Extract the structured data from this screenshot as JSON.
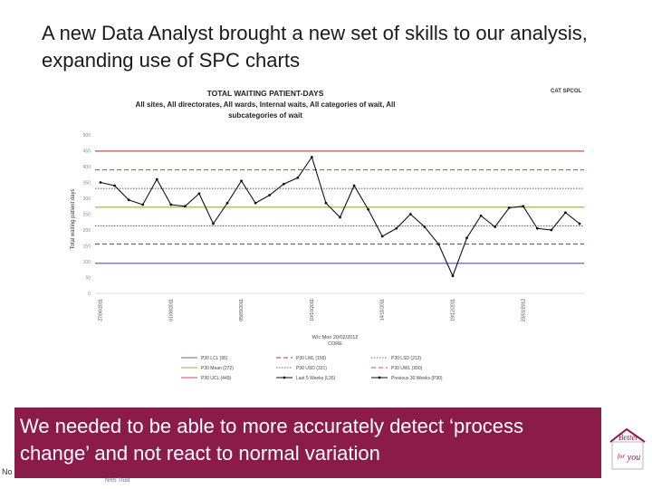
{
  "slide": {
    "title": "A new Data Analyst brought a new set of skills to our analysis, expanding use of SPC charts",
    "callout": "We needed to be able to more accurately detect ‘process change’ and not react to normal variation",
    "left_fragment": "No",
    "org_line": "NHS Trust",
    "logo_text": [
      "Better",
      "for",
      "you"
    ]
  },
  "chart_data": {
    "type": "line",
    "title": [
      "TOTAL WAITING PATIENT-DAYS",
      "All sites, All directorates, All wards, Internal waits, All categories of wait, All",
      "subcategories of wait"
    ],
    "corner_label": "CAT  SPCOL",
    "ylabel": "Total waiting patient days",
    "xlabel": [
      "W/c Mon 20/02/2012",
      "CORE"
    ],
    "ylim": [
      0,
      500
    ],
    "yticks": [
      0,
      50,
      100,
      150,
      200,
      250,
      300,
      350,
      400,
      450,
      500
    ],
    "xtick_labels": [
      {
        "index": 0,
        "label": "27/06/2011"
      },
      {
        "index": 5,
        "label": "01/08/2011"
      },
      {
        "index": 10,
        "label": "05/09/2011"
      },
      {
        "index": 15,
        "label": "10/10/2011"
      },
      {
        "index": 20,
        "label": "14/11/2011"
      },
      {
        "index": 25,
        "label": "19/12/2011"
      },
      {
        "index": 30,
        "label": "23/01/2012"
      }
    ],
    "n_points": 35,
    "reference_lines": [
      {
        "name": "P30 LCL (95)",
        "value": 95,
        "color": "#7b5ea7",
        "style": "solid"
      },
      {
        "name": "P30 LWL (156)",
        "value": 156,
        "color": "#9e3a6e",
        "style": "dashed"
      },
      {
        "name": "P30 LSD (213)",
        "value": 213,
        "color": "#6b6b8f",
        "style": "dotted"
      },
      {
        "name": "P30 Mean (272)",
        "value": 272,
        "color": "#8db33a",
        "style": "solid"
      },
      {
        "name": "P30 USD (331)",
        "value": 331,
        "color": "#6b6b8f",
        "style": "dotted"
      },
      {
        "name": "P30 UWL (390)",
        "value": 390,
        "color": "#c0504d",
        "style": "dashed"
      },
      {
        "name": "P30 UCL (449)",
        "value": 449,
        "color": "#c0504d",
        "style": "solid"
      }
    ],
    "series": [
      {
        "name": "Previous 30 Weeks (P30)",
        "color": "#111111",
        "values": [
          350,
          340,
          295,
          280,
          360,
          280,
          275,
          315,
          220,
          285,
          355,
          285,
          310,
          345,
          365,
          430,
          285,
          240,
          340,
          265,
          180,
          205,
          250,
          210,
          155,
          55,
          175,
          245,
          210,
          270,
          275,
          205,
          200,
          255,
          220
        ]
      },
      {
        "name": "Last 5 Weeks (L35)",
        "color": "#111111",
        "values": []
      }
    ],
    "legend_rows": [
      [
        "P30 LCL (95)",
        "P30 LWL (156)",
        "P30 LSD (213)"
      ],
      [
        "P30 Mean (272)",
        "P30 USD (331)",
        "P30 UWL (390)"
      ],
      [
        "P30 UCL (449)",
        "Last 5 Weeks (L35)",
        "Previous 30 Weeks (P30)"
      ]
    ],
    "legend_placement": "bottom",
    "grid": false
  }
}
